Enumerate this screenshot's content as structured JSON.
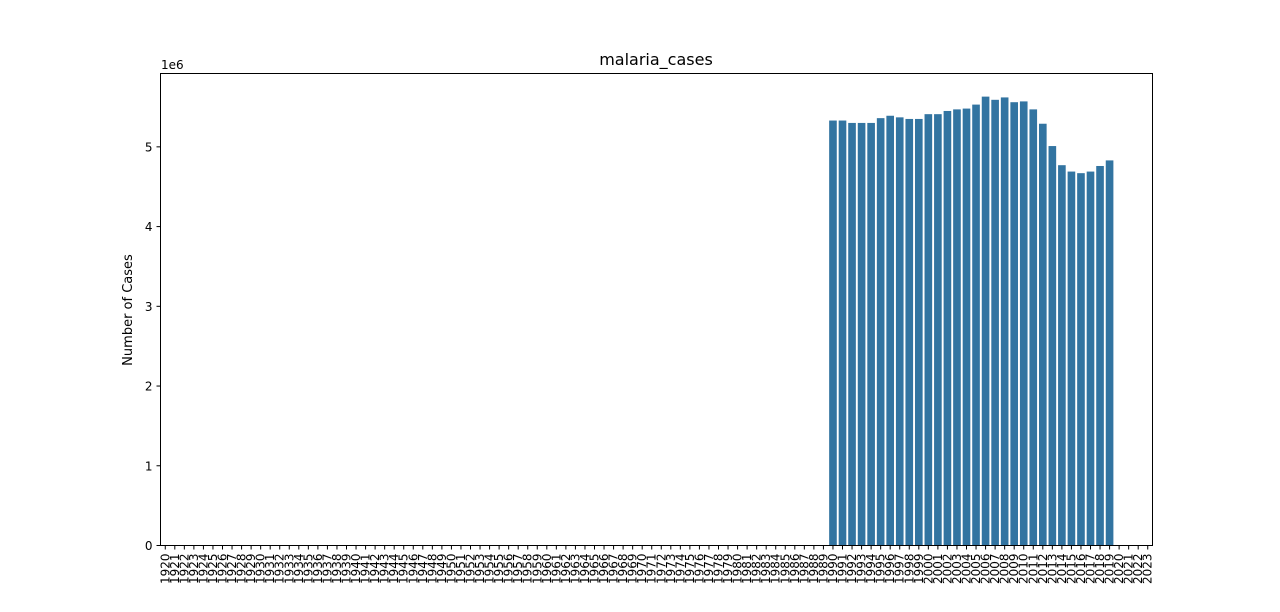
{
  "chart_data": {
    "type": "bar",
    "title": "malaria_cases",
    "xlabel": "",
    "ylabel": "Number of Cases",
    "y_offset_label": "1e6",
    "ylim": [
      0,
      5.92
    ],
    "yticks": [
      0,
      1,
      2,
      3,
      4,
      5
    ],
    "grid": false,
    "bar_color": "#3274a1",
    "categories": [
      "1920",
      "1921",
      "1922",
      "1923",
      "1924",
      "1925",
      "1926",
      "1927",
      "1928",
      "1929",
      "1930",
      "1931",
      "1932",
      "1933",
      "1934",
      "1935",
      "1936",
      "1937",
      "1938",
      "1939",
      "1940",
      "1941",
      "1942",
      "1943",
      "1944",
      "1945",
      "1946",
      "1947",
      "1948",
      "1949",
      "1950",
      "1951",
      "1952",
      "1953",
      "1954",
      "1955",
      "1956",
      "1957",
      "1958",
      "1959",
      "1960",
      "1961",
      "1962",
      "1963",
      "1964",
      "1965",
      "1966",
      "1967",
      "1968",
      "1969",
      "1970",
      "1971",
      "1972",
      "1973",
      "1974",
      "1975",
      "1976",
      "1977",
      "1978",
      "1979",
      "1980",
      "1981",
      "1982",
      "1983",
      "1984",
      "1985",
      "1986",
      "1987",
      "1988",
      "1989",
      "1990",
      "1991",
      "1992",
      "1993",
      "1994",
      "1995",
      "1996",
      "1997",
      "1998",
      "1999",
      "2000",
      "2001",
      "2002",
      "2003",
      "2004",
      "2005",
      "2006",
      "2007",
      "2008",
      "2009",
      "2010",
      "2011",
      "2012",
      "2013",
      "2014",
      "2015",
      "2016",
      "2017",
      "2018",
      "2019",
      "2020",
      "2021",
      "2022",
      "2023"
    ],
    "values": [
      null,
      null,
      null,
      null,
      null,
      null,
      null,
      null,
      null,
      null,
      null,
      null,
      null,
      null,
      null,
      null,
      null,
      null,
      null,
      null,
      null,
      null,
      null,
      null,
      null,
      null,
      null,
      null,
      null,
      null,
      null,
      null,
      null,
      null,
      null,
      null,
      null,
      null,
      null,
      null,
      null,
      null,
      null,
      null,
      null,
      null,
      null,
      null,
      null,
      null,
      null,
      null,
      null,
      null,
      null,
      null,
      null,
      null,
      null,
      null,
      null,
      null,
      null,
      null,
      null,
      null,
      null,
      null,
      null,
      null,
      5.33,
      5.33,
      5.3,
      5.3,
      5.3,
      5.36,
      5.39,
      5.37,
      5.35,
      5.35,
      5.41,
      5.41,
      5.45,
      5.47,
      5.48,
      5.53,
      5.63,
      5.59,
      5.62,
      5.56,
      5.57,
      5.47,
      5.29,
      5.01,
      4.77,
      4.69,
      4.67,
      4.69,
      4.76,
      4.83,
      null,
      null,
      null,
      null
    ]
  }
}
